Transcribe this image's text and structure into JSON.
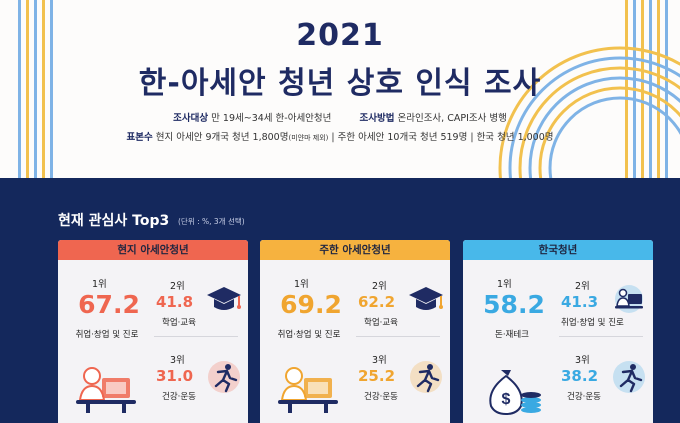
{
  "header": {
    "year": "2021",
    "title": "한-아세안 청년 상호 인식 조사",
    "target_label": "조사대상",
    "target_value": "만 19세~34세 한-아세안청년",
    "method_label": "조사방법",
    "method_value": "온라인조사, CAPI조사 병행",
    "sample_label": "표본수",
    "sample_value_a": "현지 아세안 9개국 청년 1,800명",
    "sample_note": "(미얀마 제외)",
    "sample_value_b": "| 주한 아세안 10개국 청년 519명 | 한국 청년 1,000명"
  },
  "section": {
    "title": "현재 관심사 Top3",
    "unit": "(단위 : %, 3개 선택)"
  },
  "cards": [
    {
      "name": "현지 아세안청년",
      "head_color": "#ef6650",
      "accent": "#ef6650",
      "rank1": "1위",
      "value1": "67.2",
      "label1": "취업·창업 및 진로",
      "rank2": "2위",
      "value2": "41.8",
      "label2": "학업·교육",
      "rank3": "3위",
      "value3": "31.0",
      "label3": "건강·운동"
    },
    {
      "name": "주한 아세안청년",
      "head_color": "#f6b23f",
      "accent": "#f0a530",
      "rank1": "1위",
      "value1": "69.2",
      "label1": "취업·창업 및 진로",
      "rank2": "2위",
      "value2": "62.2",
      "label2": "학업·교육",
      "rank3": "3위",
      "value3": "25.2",
      "label3": "건강·운동"
    },
    {
      "name": "한국청년",
      "head_color": "#48b8ea",
      "accent": "#3aa9e2",
      "rank1": "1위",
      "value1": "58.2",
      "label1": "돈·재테크",
      "rank2": "2위",
      "value2": "41.3",
      "label2": "취업·창업 및 진로",
      "rank3": "3위",
      "value3": "38.2",
      "label3": "건강·운동"
    }
  ],
  "icons": {
    "laptop": "laptop-person-icon",
    "graduation": "graduation-cap-icon",
    "runner": "runner-icon",
    "money": "money-bag-icon"
  }
}
